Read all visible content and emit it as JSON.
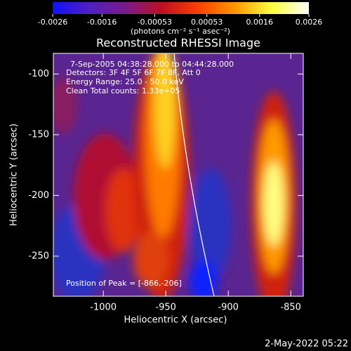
{
  "chart_data": {
    "type": "heatmap",
    "title": "Reconstructed RHESSI Image",
    "xlabel": "Heliocentric X (arcsec)",
    "ylabel": "Heliocentric Y (arcsec)",
    "xlim": [
      -1040,
      -840
    ],
    "ylim": [
      -283,
      -83
    ],
    "xticks": [
      -1000,
      -950,
      -900,
      -850
    ],
    "yticks": [
      -100,
      -150,
      -200,
      -250
    ],
    "colorbar": {
      "label": "(photons cm⁻² s⁻¹ asec⁻²)",
      "lim": [
        -0.0026,
        0.0026
      ],
      "ticks": [
        -0.0026,
        -0.0016,
        -0.00053,
        0.00053,
        0.0016,
        0.0026
      ],
      "colors": [
        "#1010ff",
        "#5020c0",
        "#7a1a8a",
        "#c01020",
        "#ff4000",
        "#ff9a00",
        "#ffff40",
        "#ffffff"
      ]
    },
    "annotations": [
      "7-Sep-2005 04:38:28.000 to 04:44:28.000",
      "Detectors: 3F 4F 5F 6F 7F 8F, Att 0",
      "Energy Range: 25.0 - 50.0 keV",
      "Clean     Total counts: 1.33e+05",
      "Position of Peak = [-866,-206]"
    ],
    "footer": "2-May-2022 05:22"
  }
}
